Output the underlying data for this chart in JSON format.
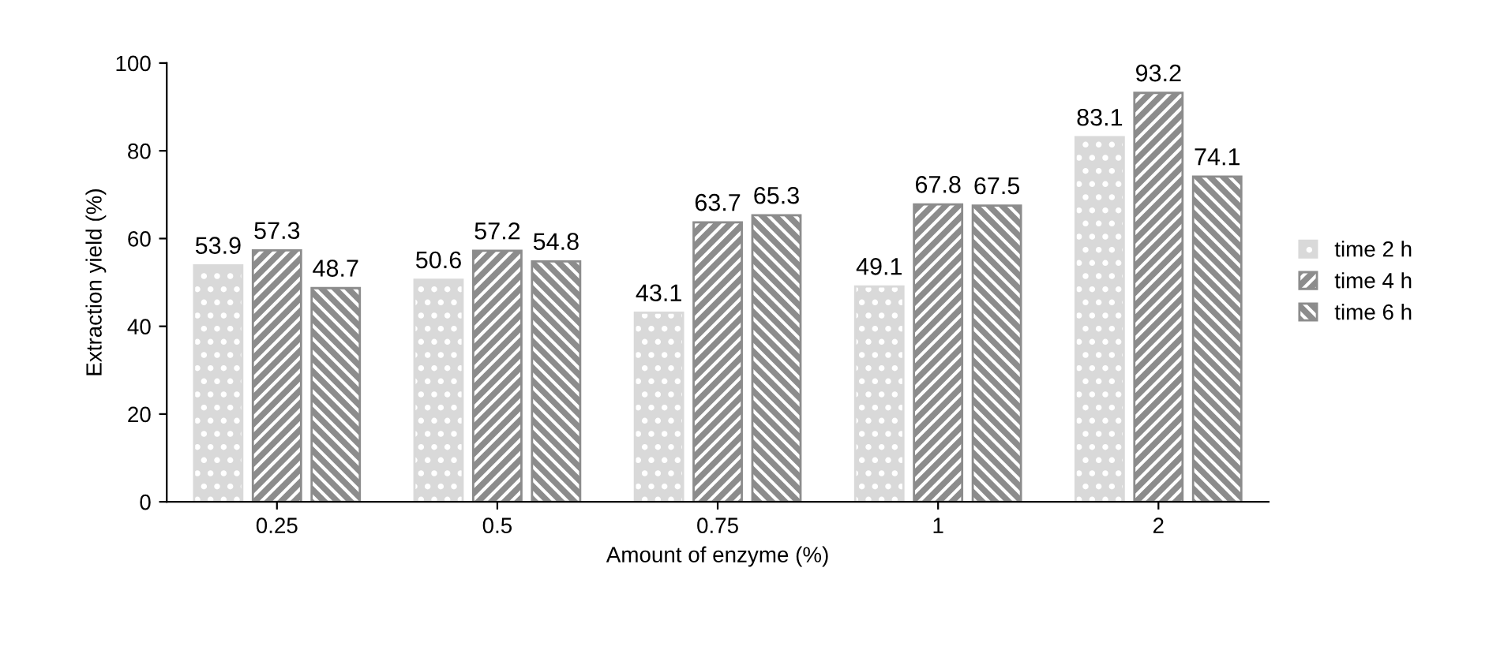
{
  "chart_data": {
    "type": "bar",
    "xlabel": "Amount of enzyme (%)",
    "ylabel": "Extraction yield (%)",
    "categories": [
      "0.25",
      "0.5",
      "0.75",
      "1",
      "2"
    ],
    "series": [
      {
        "name": "time 2 h",
        "color": "#d9d9d9",
        "values": [
          53.9,
          50.6,
          43.1,
          49.1,
          83.1
        ]
      },
      {
        "name": "time 4 h",
        "color": "#8c8c8c",
        "values": [
          57.3,
          57.2,
          63.7,
          67.8,
          93.2
        ]
      },
      {
        "name": "time 6 h",
        "color": "#8c8c8c",
        "values": [
          48.7,
          54.8,
          65.3,
          67.5,
          74.1
        ]
      }
    ],
    "ylim": [
      0,
      100
    ],
    "yticks": [
      0,
      20,
      40,
      60,
      80,
      100
    ],
    "grid": false,
    "legend": "right",
    "data_labels": true
  }
}
